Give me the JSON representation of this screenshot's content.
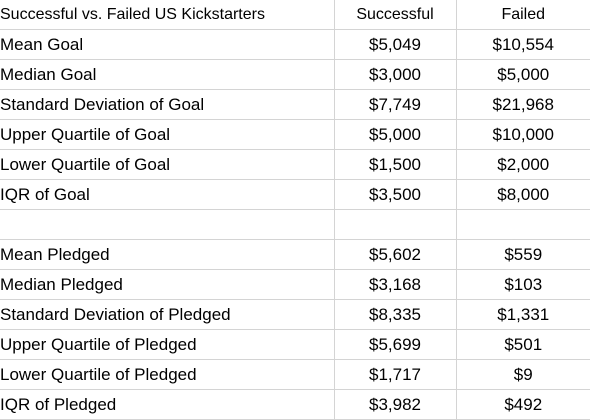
{
  "table": {
    "headers": [
      "Successful vs. Failed US Kickstarters",
      "Successful",
      "Failed"
    ],
    "rows": [
      [
        "Mean Goal",
        "$5,049",
        "$10,554"
      ],
      [
        "Median Goal",
        "$3,000",
        "$5,000"
      ],
      [
        "Standard Deviation of Goal",
        "$7,749",
        "$21,968"
      ],
      [
        "Upper Quartile of Goal",
        "$5,000",
        "$10,000"
      ],
      [
        "Lower Quartile of Goal",
        "$1,500",
        "$2,000"
      ],
      [
        "IQR of Goal",
        "$3,500",
        "$8,000"
      ],
      [
        "",
        "",
        ""
      ],
      [
        "Mean Pledged",
        "$5,602",
        "$559"
      ],
      [
        "Median Pledged",
        "$3,168",
        "$103"
      ],
      [
        "Standard Deviation of Pledged",
        "$8,335",
        "$1,331"
      ],
      [
        "Upper Quartile of Pledged",
        "$5,699",
        "$501"
      ],
      [
        "Lower Quartile of Pledged",
        "$1,717",
        "$9"
      ],
      [
        "IQR of Pledged",
        "$3,982",
        "$492"
      ]
    ]
  }
}
